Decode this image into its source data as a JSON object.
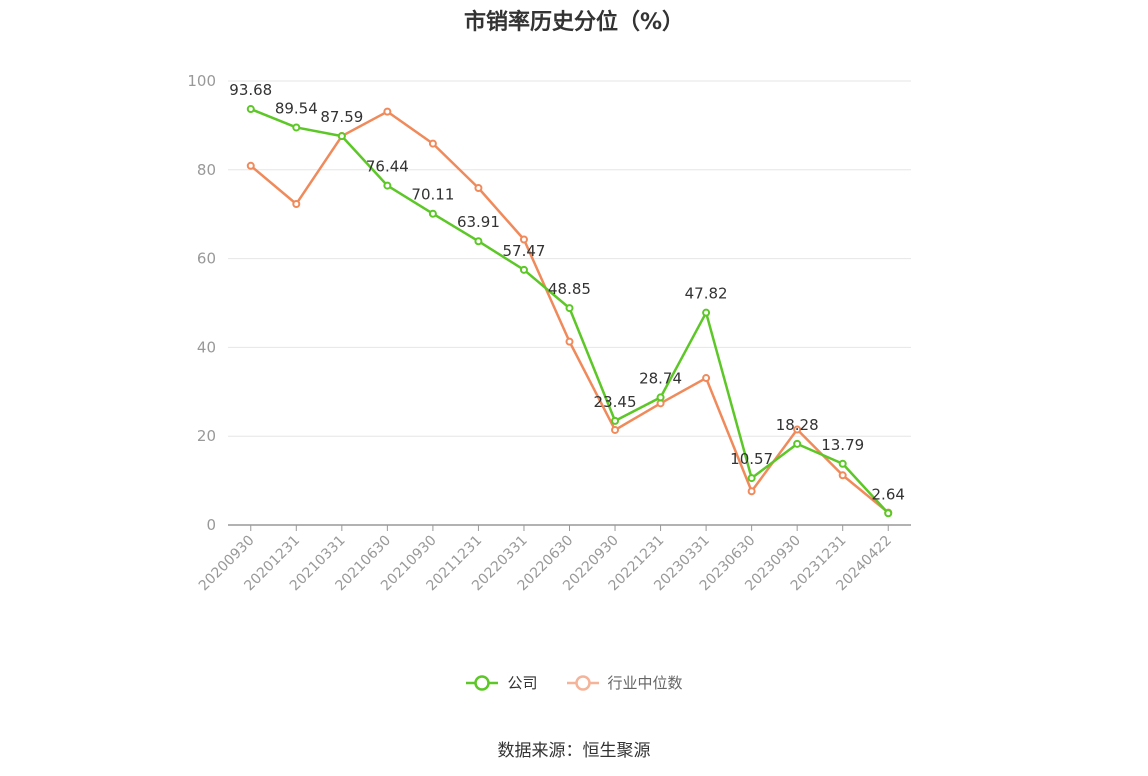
{
  "title": "市销率历史分位（%）",
  "source": "数据来源：恒生聚源",
  "colors": {
    "company": "#5cc727",
    "industry": "#f08a5b",
    "industry_legend": "#f5b49a",
    "grid": "#e6e6e6",
    "axis": "#999999",
    "tick_text": "#999999",
    "label_text": "#333333"
  },
  "chart_data": {
    "type": "line",
    "title": "市销率历史分位（%）",
    "categories": [
      "20200930",
      "20201231",
      "20210331",
      "20210630",
      "20210930",
      "20211231",
      "20220331",
      "20220630",
      "20220930",
      "20221231",
      "20230331",
      "20230630",
      "20230930",
      "20231231",
      "20240422"
    ],
    "ylim": [
      0,
      100
    ],
    "yticks": [
      0,
      20,
      40,
      60,
      80,
      100
    ],
    "grid": true,
    "legend_position": "bottom",
    "series": [
      {
        "name": "公司",
        "values": [
          93.68,
          89.54,
          87.59,
          76.44,
          70.11,
          63.91,
          57.47,
          48.85,
          23.45,
          28.74,
          47.82,
          10.57,
          18.28,
          13.79,
          2.64
        ],
        "labels": [
          "93.68",
          "89.54",
          "87.59",
          "76.44",
          "70.11",
          "63.91",
          "57.47",
          "48.85",
          "23.45",
          "28.74",
          "47.82",
          "10.57",
          "18.28",
          "13.79",
          "2.64"
        ]
      },
      {
        "name": "行业中位数",
        "values": [
          80.9,
          72.3,
          87.6,
          93.1,
          85.9,
          75.9,
          64.3,
          41.3,
          21.4,
          27.4,
          33.1,
          7.6,
          21.5,
          11.2,
          2.8
        ]
      }
    ]
  }
}
